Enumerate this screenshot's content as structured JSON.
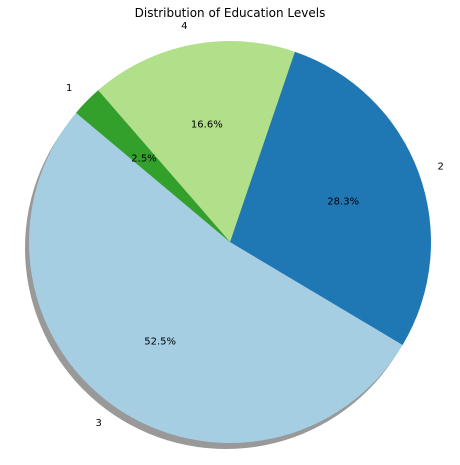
{
  "chart_data": {
    "type": "pie",
    "title": "Distribution of Education Levels",
    "slices": [
      {
        "label": "3",
        "value": 52.5,
        "pct_label": "52.5%",
        "color": "#a6cee3"
      },
      {
        "label": "2",
        "value": 28.3,
        "pct_label": "28.3%",
        "color": "#1f78b4"
      },
      {
        "label": "4",
        "value": 16.6,
        "pct_label": "16.6%",
        "color": "#b2df8a"
      },
      {
        "label": "1",
        "value": 2.5,
        "pct_label": "2.5%",
        "color": "#33a02c"
      }
    ],
    "start_angle_deg": 140,
    "direction": "counterclockwise",
    "shadow": true,
    "legend": "none"
  }
}
